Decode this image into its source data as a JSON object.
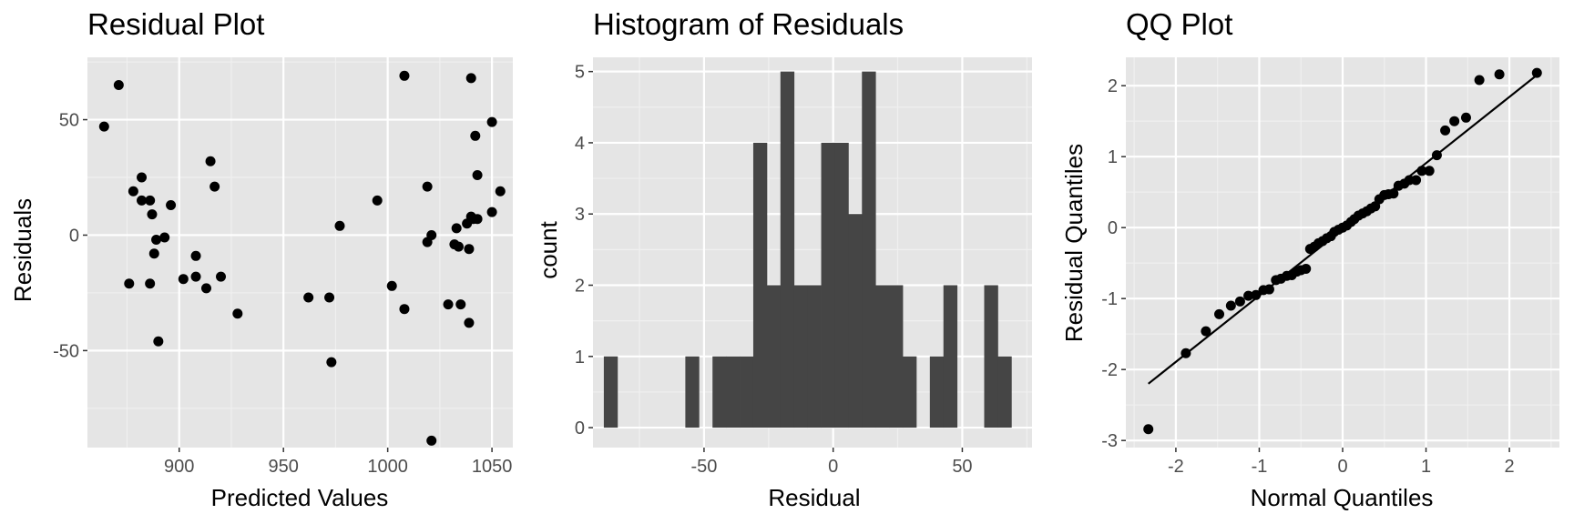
{
  "colors": {
    "panel_background": "#e5e5e5",
    "grid_major": "#ffffff",
    "grid_minor": "#f0f0f0",
    "point": "#000000",
    "bar_fill": "#454545",
    "line": "#000000",
    "tick_text": "#4d4d4d"
  },
  "chart_data": [
    {
      "type": "scatter",
      "title": "Residual Plot",
      "xlabel": "Predicted Values",
      "ylabel": "Residuals",
      "xlim": [
        856,
        1060
      ],
      "ylim": [
        -92,
        77
      ],
      "x_ticks": [
        900,
        950,
        1000,
        1050
      ],
      "x_tick_labels": [
        "900",
        "950",
        "1000",
        "1050"
      ],
      "y_ticks": [
        50,
        0,
        -50
      ],
      "y_tick_labels": [
        "50",
        "0",
        "-50"
      ],
      "grid": true,
      "points": [
        {
          "x": 864,
          "y": 47
        },
        {
          "x": 871,
          "y": 65
        },
        {
          "x": 876,
          "y": -21
        },
        {
          "x": 878,
          "y": 19
        },
        {
          "x": 882,
          "y": 25
        },
        {
          "x": 882,
          "y": 15
        },
        {
          "x": 886,
          "y": 15
        },
        {
          "x": 886,
          "y": -21
        },
        {
          "x": 887,
          "y": 9
        },
        {
          "x": 888,
          "y": -8
        },
        {
          "x": 889,
          "y": -2
        },
        {
          "x": 890,
          "y": -46
        },
        {
          "x": 893,
          "y": -1
        },
        {
          "x": 896,
          "y": 13
        },
        {
          "x": 902,
          "y": -19
        },
        {
          "x": 908,
          "y": -9
        },
        {
          "x": 908,
          "y": -18
        },
        {
          "x": 913,
          "y": -23
        },
        {
          "x": 915,
          "y": 32
        },
        {
          "x": 917,
          "y": 21
        },
        {
          "x": 920,
          "y": -18
        },
        {
          "x": 928,
          "y": -34
        },
        {
          "x": 962,
          "y": -27
        },
        {
          "x": 972,
          "y": -27
        },
        {
          "x": 973,
          "y": -55
        },
        {
          "x": 977,
          "y": 4
        },
        {
          "x": 995,
          "y": 15
        },
        {
          "x": 1002,
          "y": -22
        },
        {
          "x": 1008,
          "y": 69
        },
        {
          "x": 1008,
          "y": -32
        },
        {
          "x": 1019,
          "y": 21
        },
        {
          "x": 1019,
          "y": -3
        },
        {
          "x": 1021,
          "y": 0
        },
        {
          "x": 1021,
          "y": -89
        },
        {
          "x": 1029,
          "y": -30
        },
        {
          "x": 1032,
          "y": -4
        },
        {
          "x": 1033,
          "y": 3
        },
        {
          "x": 1034,
          "y": -5
        },
        {
          "x": 1035,
          "y": -30
        },
        {
          "x": 1038,
          "y": 5
        },
        {
          "x": 1039,
          "y": -6
        },
        {
          "x": 1039,
          "y": -38
        },
        {
          "x": 1040,
          "y": 68
        },
        {
          "x": 1040,
          "y": 8
        },
        {
          "x": 1041,
          "y": 7
        },
        {
          "x": 1042,
          "y": 43
        },
        {
          "x": 1043,
          "y": 26
        },
        {
          "x": 1043,
          "y": 7
        },
        {
          "x": 1050,
          "y": 49
        },
        {
          "x": 1050,
          "y": 10
        },
        {
          "x": 1054,
          "y": 19
        }
      ]
    },
    {
      "type": "bar",
      "title": "Histogram of Residuals",
      "xlabel": "Residual",
      "ylabel": "count",
      "xlim": [
        -93,
        77
      ],
      "ylim": [
        -0.28,
        5.2
      ],
      "x_ticks": [
        -50,
        0,
        50
      ],
      "x_tick_labels": [
        "-50",
        "0",
        "50"
      ],
      "y_ticks": [
        0,
        1,
        2,
        3,
        4,
        5
      ],
      "y_tick_labels": [
        "0",
        "1",
        "2",
        "3",
        "4",
        "5"
      ],
      "grid": true,
      "bin_start": -88.8,
      "bin_width": 5.26,
      "counts": [
        1,
        0,
        0,
        0,
        0,
        0,
        1,
        0,
        1,
        1,
        1,
        4,
        2,
        5,
        2,
        2,
        4,
        4,
        3,
        5,
        2,
        2,
        1,
        0,
        1,
        2,
        0,
        0,
        2,
        1
      ]
    },
    {
      "type": "scatter",
      "title": "QQ Plot",
      "xlabel": "Normal Quantiles",
      "ylabel": "Residual Quantiles",
      "xlim": [
        -2.6,
        2.6
      ],
      "ylim": [
        -3.1,
        2.4
      ],
      "x_ticks": [
        -2,
        -1,
        0,
        1,
        2
      ],
      "x_tick_labels": [
        "-2",
        "-1",
        "0",
        "1",
        "2"
      ],
      "y_ticks": [
        2,
        1,
        0,
        -1,
        -2,
        -3
      ],
      "y_tick_labels": [
        "2",
        "1",
        "0",
        "-1",
        "-2",
        "-3"
      ],
      "grid": true,
      "reference_line": {
        "x1": -2.33,
        "y1": -2.2,
        "x2": 2.33,
        "y2": 2.15
      },
      "points": [
        {
          "x": -2.33,
          "y": -2.84
        },
        {
          "x": -1.88,
          "y": -1.77
        },
        {
          "x": -1.64,
          "y": -1.46
        },
        {
          "x": -1.48,
          "y": -1.22
        },
        {
          "x": -1.34,
          "y": -1.1
        },
        {
          "x": -1.23,
          "y": -1.04
        },
        {
          "x": -1.13,
          "y": -0.96
        },
        {
          "x": -1.04,
          "y": -0.95
        },
        {
          "x": -0.95,
          "y": -0.88
        },
        {
          "x": -0.88,
          "y": -0.87
        },
        {
          "x": -0.8,
          "y": -0.74
        },
        {
          "x": -0.74,
          "y": -0.72
        },
        {
          "x": -0.67,
          "y": -0.68
        },
        {
          "x": -0.61,
          "y": -0.67
        },
        {
          "x": -0.55,
          "y": -0.62
        },
        {
          "x": -0.5,
          "y": -0.6
        },
        {
          "x": -0.44,
          "y": -0.58
        },
        {
          "x": -0.39,
          "y": -0.3
        },
        {
          "x": -0.34,
          "y": -0.27
        },
        {
          "x": -0.29,
          "y": -0.22
        },
        {
          "x": -0.24,
          "y": -0.19
        },
        {
          "x": -0.19,
          "y": -0.15
        },
        {
          "x": -0.14,
          "y": -0.12
        },
        {
          "x": -0.1,
          "y": -0.06
        },
        {
          "x": -0.05,
          "y": -0.03
        },
        {
          "x": 0.0,
          "y": 0.0
        },
        {
          "x": 0.05,
          "y": 0.03
        },
        {
          "x": 0.1,
          "y": 0.08
        },
        {
          "x": 0.14,
          "y": 0.12
        },
        {
          "x": 0.19,
          "y": 0.17
        },
        {
          "x": 0.24,
          "y": 0.2
        },
        {
          "x": 0.29,
          "y": 0.23
        },
        {
          "x": 0.34,
          "y": 0.27
        },
        {
          "x": 0.39,
          "y": 0.3
        },
        {
          "x": 0.44,
          "y": 0.4
        },
        {
          "x": 0.5,
          "y": 0.46
        },
        {
          "x": 0.55,
          "y": 0.47
        },
        {
          "x": 0.61,
          "y": 0.48
        },
        {
          "x": 0.67,
          "y": 0.59
        },
        {
          "x": 0.74,
          "y": 0.62
        },
        {
          "x": 0.8,
          "y": 0.67
        },
        {
          "x": 0.88,
          "y": 0.67
        },
        {
          "x": 0.95,
          "y": 0.8
        },
        {
          "x": 1.04,
          "y": 0.8
        },
        {
          "x": 1.13,
          "y": 1.02
        },
        {
          "x": 1.23,
          "y": 1.37
        },
        {
          "x": 1.34,
          "y": 1.5
        },
        {
          "x": 1.48,
          "y": 1.55
        },
        {
          "x": 1.64,
          "y": 2.08
        },
        {
          "x": 1.88,
          "y": 2.16
        },
        {
          "x": 2.33,
          "y": 2.18
        }
      ]
    }
  ]
}
